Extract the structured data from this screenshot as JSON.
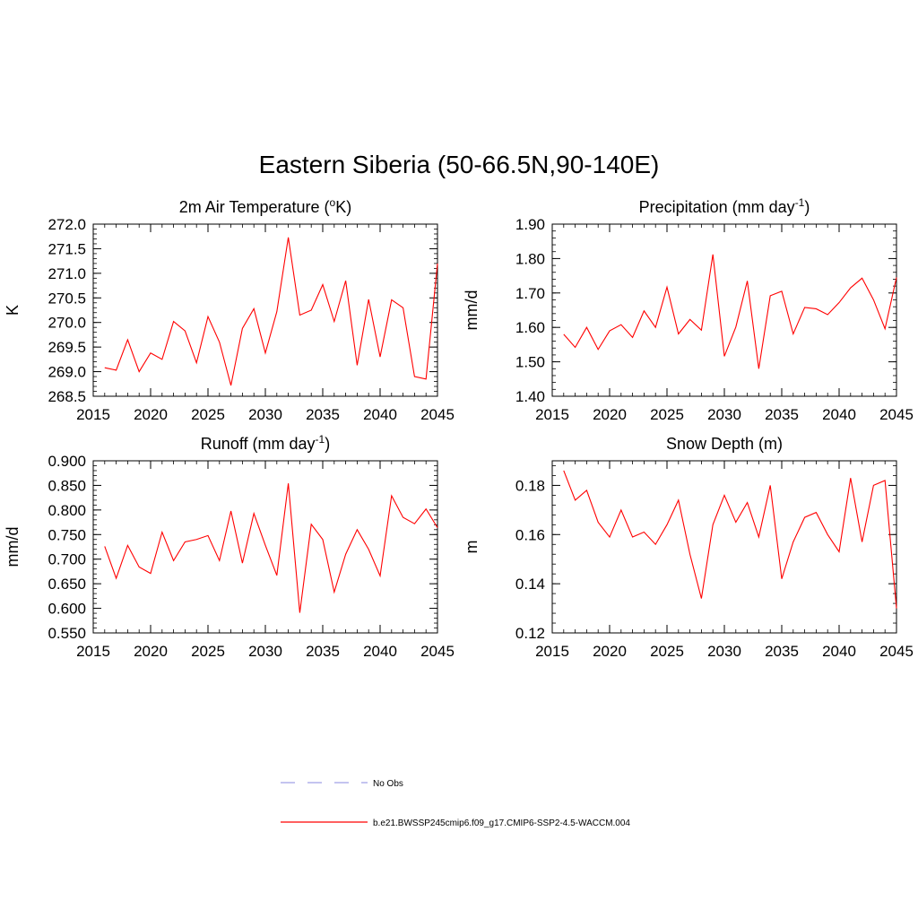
{
  "title": "Eastern Siberia (50-66.5N,90-140E)",
  "colors": {
    "model": "#ff0000",
    "obs": "#a0a0e8"
  },
  "legend": [
    {
      "label": "No Obs",
      "style": "dashed",
      "color": "#a0a0e8"
    },
    {
      "label": "b.e21.BWSSP245cmip6.f09_g17.CMIP6-SSP2-4.5-WACCM.004",
      "style": "solid",
      "color": "#ff0000"
    }
  ],
  "chart_data": [
    {
      "type": "line",
      "title": "2m Air Temperature (oK)",
      "title_parts": [
        "2m Air Temperature (",
        "o",
        "K)"
      ],
      "ylabel": "K",
      "xlim": [
        2015,
        2045
      ],
      "ylim": [
        268.5,
        272.0
      ],
      "xticks": [
        2015,
        2020,
        2025,
        2030,
        2035,
        2040,
        2045
      ],
      "yticks": [
        "268.5",
        "269.0",
        "269.5",
        "270.0",
        "270.5",
        "271.0",
        "271.5",
        "272.0"
      ],
      "x": [
        2016,
        2017,
        2018,
        2019,
        2020,
        2021,
        2022,
        2023,
        2024,
        2025,
        2026,
        2027,
        2028,
        2029,
        2030,
        2031,
        2032,
        2033,
        2034,
        2035,
        2036,
        2037,
        2038,
        2039,
        2040,
        2041,
        2042,
        2043,
        2044,
        2045
      ],
      "series": [
        {
          "values": [
            269.08,
            269.03,
            269.65,
            269.0,
            269.38,
            269.25,
            270.02,
            269.83,
            269.18,
            270.12,
            269.6,
            268.72,
            269.88,
            270.28,
            269.38,
            270.22,
            271.73,
            270.15,
            270.25,
            270.77,
            270.02,
            270.85,
            269.13,
            270.47,
            269.3,
            270.46,
            270.3,
            268.9,
            268.85,
            271.2
          ]
        }
      ]
    },
    {
      "type": "line",
      "title": "Precipitation (mm day-1)",
      "title_parts": [
        "Precipitation (mm day",
        "-1",
        ")"
      ],
      "ylabel": "mm/d",
      "xlim": [
        2015,
        2045
      ],
      "ylim": [
        1.4,
        1.9
      ],
      "xticks": [
        2015,
        2020,
        2025,
        2030,
        2035,
        2040,
        2045
      ],
      "yticks": [
        "1.40",
        "1.50",
        "1.60",
        "1.70",
        "1.80",
        "1.90"
      ],
      "x": [
        2016,
        2017,
        2018,
        2019,
        2020,
        2021,
        2022,
        2023,
        2024,
        2025,
        2026,
        2027,
        2028,
        2029,
        2030,
        2031,
        2032,
        2033,
        2034,
        2035,
        2036,
        2037,
        2038,
        2039,
        2040,
        2041,
        2042,
        2043,
        2044,
        2045
      ],
      "series": [
        {
          "values": [
            1.58,
            1.542,
            1.6,
            1.536,
            1.59,
            1.608,
            1.571,
            1.648,
            1.6,
            1.717,
            1.581,
            1.623,
            1.592,
            1.812,
            1.516,
            1.601,
            1.735,
            1.48,
            1.692,
            1.705,
            1.581,
            1.658,
            1.654,
            1.637,
            1.672,
            1.715,
            1.743,
            1.68,
            1.596,
            1.745
          ]
        }
      ]
    },
    {
      "type": "line",
      "title": "Runoff (mm day-1)",
      "title_parts": [
        "Runoff (mm day",
        "-1",
        ")"
      ],
      "ylabel": "mm/d",
      "xlim": [
        2015,
        2045
      ],
      "ylim": [
        0.55,
        0.9
      ],
      "xticks": [
        2015,
        2020,
        2025,
        2030,
        2035,
        2040,
        2045
      ],
      "yticks": [
        "0.550",
        "0.600",
        "0.650",
        "0.700",
        "0.750",
        "0.800",
        "0.850",
        "0.900"
      ],
      "x": [
        2016,
        2017,
        2018,
        2019,
        2020,
        2021,
        2022,
        2023,
        2024,
        2025,
        2026,
        2027,
        2028,
        2029,
        2030,
        2031,
        2032,
        2033,
        2034,
        2035,
        2036,
        2037,
        2038,
        2039,
        2040,
        2041,
        2042,
        2043,
        2044,
        2045
      ],
      "series": [
        {
          "values": [
            0.726,
            0.661,
            0.728,
            0.684,
            0.671,
            0.755,
            0.697,
            0.735,
            0.74,
            0.748,
            0.697,
            0.798,
            0.692,
            0.793,
            0.728,
            0.667,
            0.854,
            0.591,
            0.771,
            0.74,
            0.633,
            0.71,
            0.76,
            0.72,
            0.666,
            0.829,
            0.785,
            0.772,
            0.802,
            0.764
          ]
        }
      ]
    },
    {
      "type": "line",
      "title": "Snow Depth (m)",
      "title_parts": [
        "Snow Depth (m)",
        "",
        ""
      ],
      "ylabel": "m",
      "xlim": [
        2015,
        2045
      ],
      "ylim": [
        0.12,
        0.19
      ],
      "xticks": [
        2015,
        2020,
        2025,
        2030,
        2035,
        2040,
        2045
      ],
      "yticks": [
        "0.12",
        "0.14",
        "0.16",
        "0.18"
      ],
      "x": [
        2016,
        2017,
        2018,
        2019,
        2020,
        2021,
        2022,
        2023,
        2024,
        2025,
        2026,
        2027,
        2028,
        2029,
        2030,
        2031,
        2032,
        2033,
        2034,
        2035,
        2036,
        2037,
        2038,
        2039,
        2040,
        2041,
        2042,
        2043,
        2044,
        2045
      ],
      "series": [
        {
          "values": [
            0.186,
            0.174,
            0.178,
            0.165,
            0.159,
            0.17,
            0.159,
            0.161,
            0.156,
            0.164,
            0.174,
            0.152,
            0.134,
            0.164,
            0.176,
            0.165,
            0.173,
            0.159,
            0.18,
            0.142,
            0.157,
            0.167,
            0.169,
            0.16,
            0.153,
            0.183,
            0.157,
            0.18,
            0.182,
            0.13
          ]
        }
      ]
    }
  ]
}
